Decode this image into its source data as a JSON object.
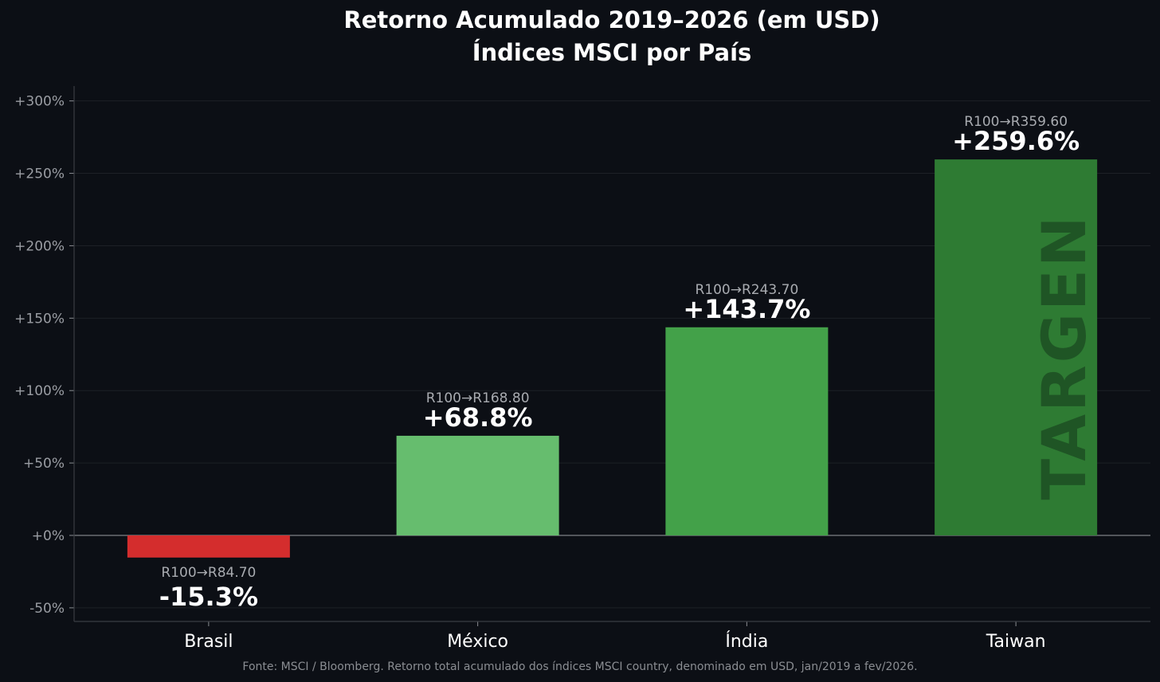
{
  "chart_data": {
    "type": "bar",
    "title": "Retorno Acumulado 2019–2026 (em USD)",
    "subtitle": "Índices MSCI por País",
    "categories": [
      "Brasil",
      "México",
      "Índia",
      "Taiwan"
    ],
    "values": [
      -15.3,
      68.8,
      143.7,
      259.6
    ],
    "value_labels": [
      "-15.3%",
      "+68.8%",
      "+143.7%",
      "+259.6%"
    ],
    "sub_labels": [
      "R100→R84.70",
      "R100→R168.80",
      "R100→R243.70",
      "R100→R359.60"
    ],
    "bar_colors": [
      "#d42d2d",
      "#66bd6e",
      "#43a149",
      "#2e7b33"
    ],
    "ylim": [
      -60,
      310
    ],
    "yticks": [
      -50,
      0,
      50,
      100,
      150,
      200,
      250,
      300
    ],
    "ytick_labels": [
      "-50%",
      "+0%",
      "+50%",
      "+100%",
      "+150%",
      "+200%",
      "+250%",
      "+300%"
    ],
    "xlabel": "",
    "ylabel": "",
    "grid": true
  },
  "watermark": "TARGEN",
  "source_note": "Fonte: MSCI / Bloomberg. Retorno total acumulado dos índices MSCI country, denominado em USD, jan/2019 a fev/2026.",
  "colors": {
    "background": "#0c0f15",
    "grid": "#1d2026",
    "axis": "#3a3d43",
    "zero_line": "#6b6e73",
    "watermark": "#1f5525"
  }
}
